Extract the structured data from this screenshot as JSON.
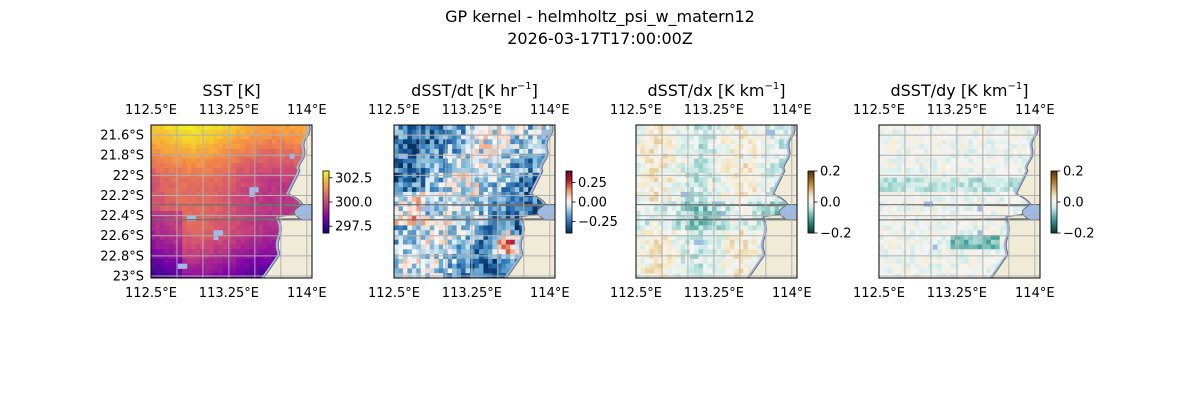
{
  "figure": {
    "title_line1": "GP kernel - helmholtz_psi_w_matern12",
    "title_line2": "2026-03-17T17:00:00Z"
  },
  "chart_data": [
    {
      "type": "heatmap",
      "title": "SST [K]",
      "title_unit_sup": "",
      "title_suffix": "",
      "x_ticks": [
        112.5,
        113.25,
        114.0
      ],
      "x_tick_labels": [
        "112.5°E",
        "113.25°E",
        "114°E"
      ],
      "y_ticks": [
        -21.6,
        -21.8,
        -22.0,
        -22.2,
        -22.4,
        -22.6,
        -22.8,
        -23.0
      ],
      "y_tick_labels": [
        "21.6°S",
        "21.8°S",
        "22°S",
        "22.2°S",
        "22.4°S",
        "22.6°S",
        "22.8°S",
        "23°S"
      ],
      "xlim": [
        112.5,
        114.05
      ],
      "ylim": [
        -23.02,
        -21.5
      ],
      "colormap": "plasma",
      "colorbar_ticks": [
        302.5,
        300.0,
        297.5
      ],
      "colorbar_tick_labels": [
        "302.5",
        "300.0",
        "297.5"
      ],
      "clim": [
        296.8,
        303.2
      ],
      "show_lat_labels": true
    },
    {
      "type": "heatmap",
      "title": "dSST/dt [K hr",
      "title_unit_sup": "−1",
      "title_suffix": "]",
      "x_ticks": [
        112.5,
        113.25,
        114.0
      ],
      "x_tick_labels": [
        "112.5°E",
        "113.25°E",
        "114°E"
      ],
      "xlim": [
        112.5,
        114.05
      ],
      "ylim": [
        -23.02,
        -21.5
      ],
      "colormap": "RdBu_r",
      "colorbar_ticks": [
        0.25,
        0.0,
        -0.25
      ],
      "colorbar_tick_labels": [
        "0.25",
        "0.00",
        "−0.25"
      ],
      "clim": [
        -0.4,
        0.4
      ],
      "show_lat_labels": false
    },
    {
      "type": "heatmap",
      "title": "dSST/dx [K km",
      "title_unit_sup": "−1",
      "title_suffix": "]",
      "x_ticks": [
        112.5,
        113.25,
        114.0
      ],
      "x_tick_labels": [
        "112.5°E",
        "113.25°E",
        "114°E"
      ],
      "xlim": [
        112.5,
        114.05
      ],
      "ylim": [
        -23.02,
        -21.5
      ],
      "colormap": "BrBG_r",
      "colorbar_ticks": [
        0.2,
        0.0,
        -0.2
      ],
      "colorbar_tick_labels": [
        "0.2",
        "0.0",
        "−0.2"
      ],
      "clim": [
        -0.2,
        0.2
      ],
      "show_lat_labels": false
    },
    {
      "type": "heatmap",
      "title": "dSST/dy [K km",
      "title_unit_sup": "−1",
      "title_suffix": "]",
      "x_ticks": [
        112.5,
        113.25,
        114.0
      ],
      "x_tick_labels": [
        "112.5°E",
        "113.25°E",
        "114°E"
      ],
      "xlim": [
        112.5,
        114.05
      ],
      "ylim": [
        -23.02,
        -21.5
      ],
      "colormap": "BrBG_r",
      "colorbar_ticks": [
        0.2,
        0.0,
        -0.2
      ],
      "colorbar_tick_labels": [
        "0.2",
        "0.0",
        "−0.2"
      ],
      "clim": [
        -0.2,
        0.2
      ],
      "show_lat_labels": false
    }
  ],
  "colors": {
    "land": "#efebd7",
    "coast": "#6f6f6f",
    "ocean_nodata": "#9dbbe6",
    "grid": "#b0b0b0"
  }
}
